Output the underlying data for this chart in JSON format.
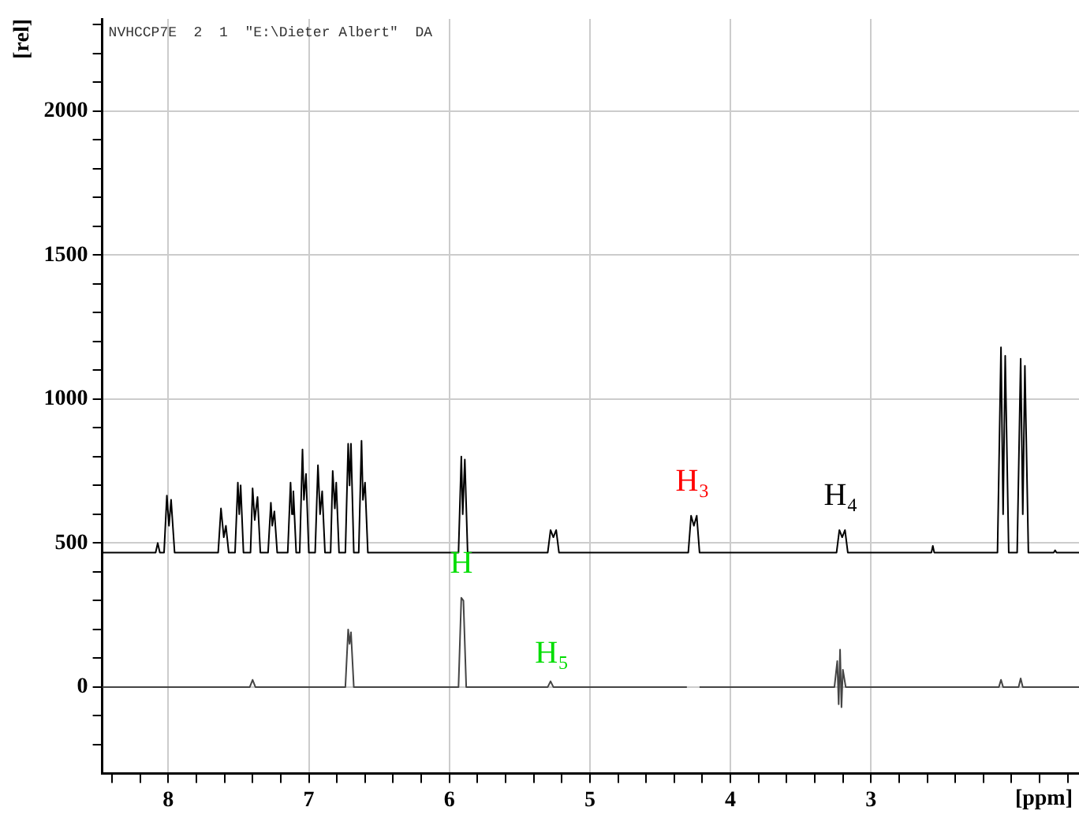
{
  "chart_data": {
    "type": "line",
    "xlabel": "[ppm]",
    "ylabel": "[rel]",
    "xlim": [
      8.47,
      1.52
    ],
    "ylim": [
      -300,
      2320
    ],
    "xticks": [
      {
        "value": 8.4,
        "label": null
      },
      {
        "value": 8.2,
        "label": null
      },
      8,
      {
        "value": 7.8,
        "label": null
      },
      {
        "value": 7.6,
        "label": null
      },
      {
        "value": 7.4,
        "label": null
      },
      {
        "value": 7.2,
        "label": null
      },
      7,
      {
        "value": 6.8,
        "label": null
      },
      {
        "value": 6.6,
        "label": null
      },
      {
        "value": 6.4,
        "label": null
      },
      {
        "value": 6.2,
        "label": null
      },
      6,
      {
        "value": 5.8,
        "label": null
      },
      {
        "value": 5.6,
        "label": null
      },
      {
        "value": 5.4,
        "label": null
      },
      {
        "value": 5.2,
        "label": null
      },
      5,
      {
        "value": 4.8,
        "label": null
      },
      {
        "value": 4.6,
        "label": null
      },
      {
        "value": 4.4,
        "label": null
      },
      {
        "value": 4.2,
        "label": null
      },
      4,
      {
        "value": 3.8,
        "label": null
      },
      {
        "value": 3.6,
        "label": null
      },
      {
        "value": 3.4,
        "label": null
      },
      {
        "value": 3.2,
        "label": null
      },
      3,
      {
        "value": 2.8,
        "label": null
      },
      {
        "value": 2.6,
        "label": null
      },
      {
        "value": 2.4,
        "label": null
      },
      {
        "value": 2.2,
        "label": null
      },
      {
        "value": 2,
        "label": null
      },
      {
        "value": 1.8,
        "label": null
      },
      {
        "value": 1.6,
        "label": null
      }
    ],
    "yticks": [
      {
        "value": -200,
        "label": null
      },
      {
        "value": -100,
        "label": null
      },
      0,
      {
        "value": 100,
        "label": null
      },
      {
        "value": 200,
        "label": null
      },
      {
        "value": 300,
        "label": null
      },
      {
        "value": 400,
        "label": null
      },
      500,
      {
        "value": 600,
        "label": null
      },
      {
        "value": 700,
        "label": null
      },
      {
        "value": 800,
        "label": null
      },
      {
        "value": 900,
        "label": null
      },
      1000,
      {
        "value": 1100,
        "label": null
      },
      {
        "value": 1200,
        "label": null
      },
      {
        "value": 1300,
        "label": null
      },
      {
        "value": 1400,
        "label": null
      },
      1500,
      {
        "value": 1600,
        "label": null
      },
      {
        "value": 1700,
        "label": null
      },
      {
        "value": 1800,
        "label": null
      },
      {
        "value": 1900,
        "label": null
      },
      2000,
      {
        "value": 2100,
        "label": null
      },
      {
        "value": 2200,
        "label": null
      },
      {
        "value": 2300,
        "label": null
      }
    ],
    "grid": true,
    "legend": false,
    "marker": "none",
    "line_style": "solid",
    "series": [
      {
        "color": "#000000",
        "x": [
          8.47,
          8.09,
          8.075,
          8.06,
          8.03,
          8.01,
          7.995,
          7.98,
          7.955,
          7.645,
          7.625,
          7.605,
          7.59,
          7.57,
          7.525,
          7.505,
          7.495,
          7.485,
          7.465,
          7.415,
          7.4,
          7.385,
          7.365,
          7.345,
          7.29,
          7.27,
          7.26,
          7.245,
          7.225,
          7.15,
          7.13,
          7.12,
          7.11,
          7.09,
          7.065,
          7.045,
          7.035,
          7.02,
          7.0,
          6.955,
          6.935,
          6.92,
          6.905,
          6.885,
          6.845,
          6.83,
          6.815,
          6.805,
          6.785,
          6.74,
          6.72,
          6.71,
          6.7,
          6.68,
          6.645,
          6.625,
          6.615,
          6.6,
          6.58,
          5.935,
          5.915,
          5.905,
          5.89,
          5.87,
          5.3,
          5.28,
          5.26,
          5.24,
          5.22,
          4.3,
          4.28,
          4.26,
          4.24,
          4.22,
          3.245,
          3.225,
          3.205,
          3.185,
          3.165,
          2.57,
          2.56,
          2.55,
          2.1,
          2.075,
          2.06,
          2.045,
          2.02,
          1.96,
          1.935,
          1.92,
          1.905,
          1.88,
          1.7,
          1.69,
          1.68,
          1.52
        ],
        "values": [
          467,
          467,
          500,
          467,
          467,
          665,
          560,
          650,
          467,
          467,
          620,
          520,
          560,
          467,
          467,
          710,
          600,
          700,
          467,
          467,
          690,
          580,
          660,
          467,
          467,
          640,
          560,
          610,
          467,
          467,
          710,
          600,
          680,
          467,
          467,
          825,
          650,
          740,
          467,
          467,
          770,
          600,
          680,
          467,
          467,
          750,
          620,
          710,
          467,
          467,
          845,
          700,
          845,
          467,
          467,
          855,
          650,
          710,
          467,
          467,
          800,
          600,
          790,
          467,
          467,
          545,
          520,
          545,
          467,
          467,
          595,
          560,
          595,
          467,
          467,
          545,
          520,
          545,
          467,
          467,
          490,
          467,
          467,
          1180,
          600,
          1150,
          467,
          467,
          1140,
          600,
          1115,
          467,
          467,
          475,
          467,
          467
        ]
      },
      {
        "color": "#444444",
        "x": [
          8.47,
          7.42,
          7.4,
          7.38,
          6.74,
          6.72,
          6.71,
          6.7,
          6.68,
          5.935,
          5.915,
          5.9,
          5.88,
          5.3,
          5.28,
          5.26,
          4.31,
          4.29,
          4.26,
          4.24,
          4.22,
          3.26,
          3.24,
          3.23,
          3.22,
          3.21,
          3.2,
          3.18,
          2.09,
          2.075,
          2.06,
          1.95,
          1.935,
          1.92,
          1.52
        ],
        "values": [
          0,
          0,
          25,
          0,
          0,
          200,
          150,
          190,
          0,
          0,
          310,
          300,
          0,
          0,
          20,
          0,
          0,
          null,
          null,
          null,
          0,
          0,
          90,
          -60,
          130,
          -70,
          60,
          0,
          0,
          25,
          0,
          0,
          30,
          0,
          0
        ]
      }
    ],
    "annotations": [
      "NVHCCP7E  2  1  \"E:\\Dieter Albert\"  DA",
      {
        "text": "H₃",
        "x": 4.28,
        "y": 595
      },
      {
        "text": "H₄",
        "x": 3.225,
        "y": 545
      },
      {
        "text": "H",
        "x": 5.915,
        "y": 310
      },
      {
        "text": "H₅",
        "x": 5.28,
        "y": 20
      }
    ]
  }
}
